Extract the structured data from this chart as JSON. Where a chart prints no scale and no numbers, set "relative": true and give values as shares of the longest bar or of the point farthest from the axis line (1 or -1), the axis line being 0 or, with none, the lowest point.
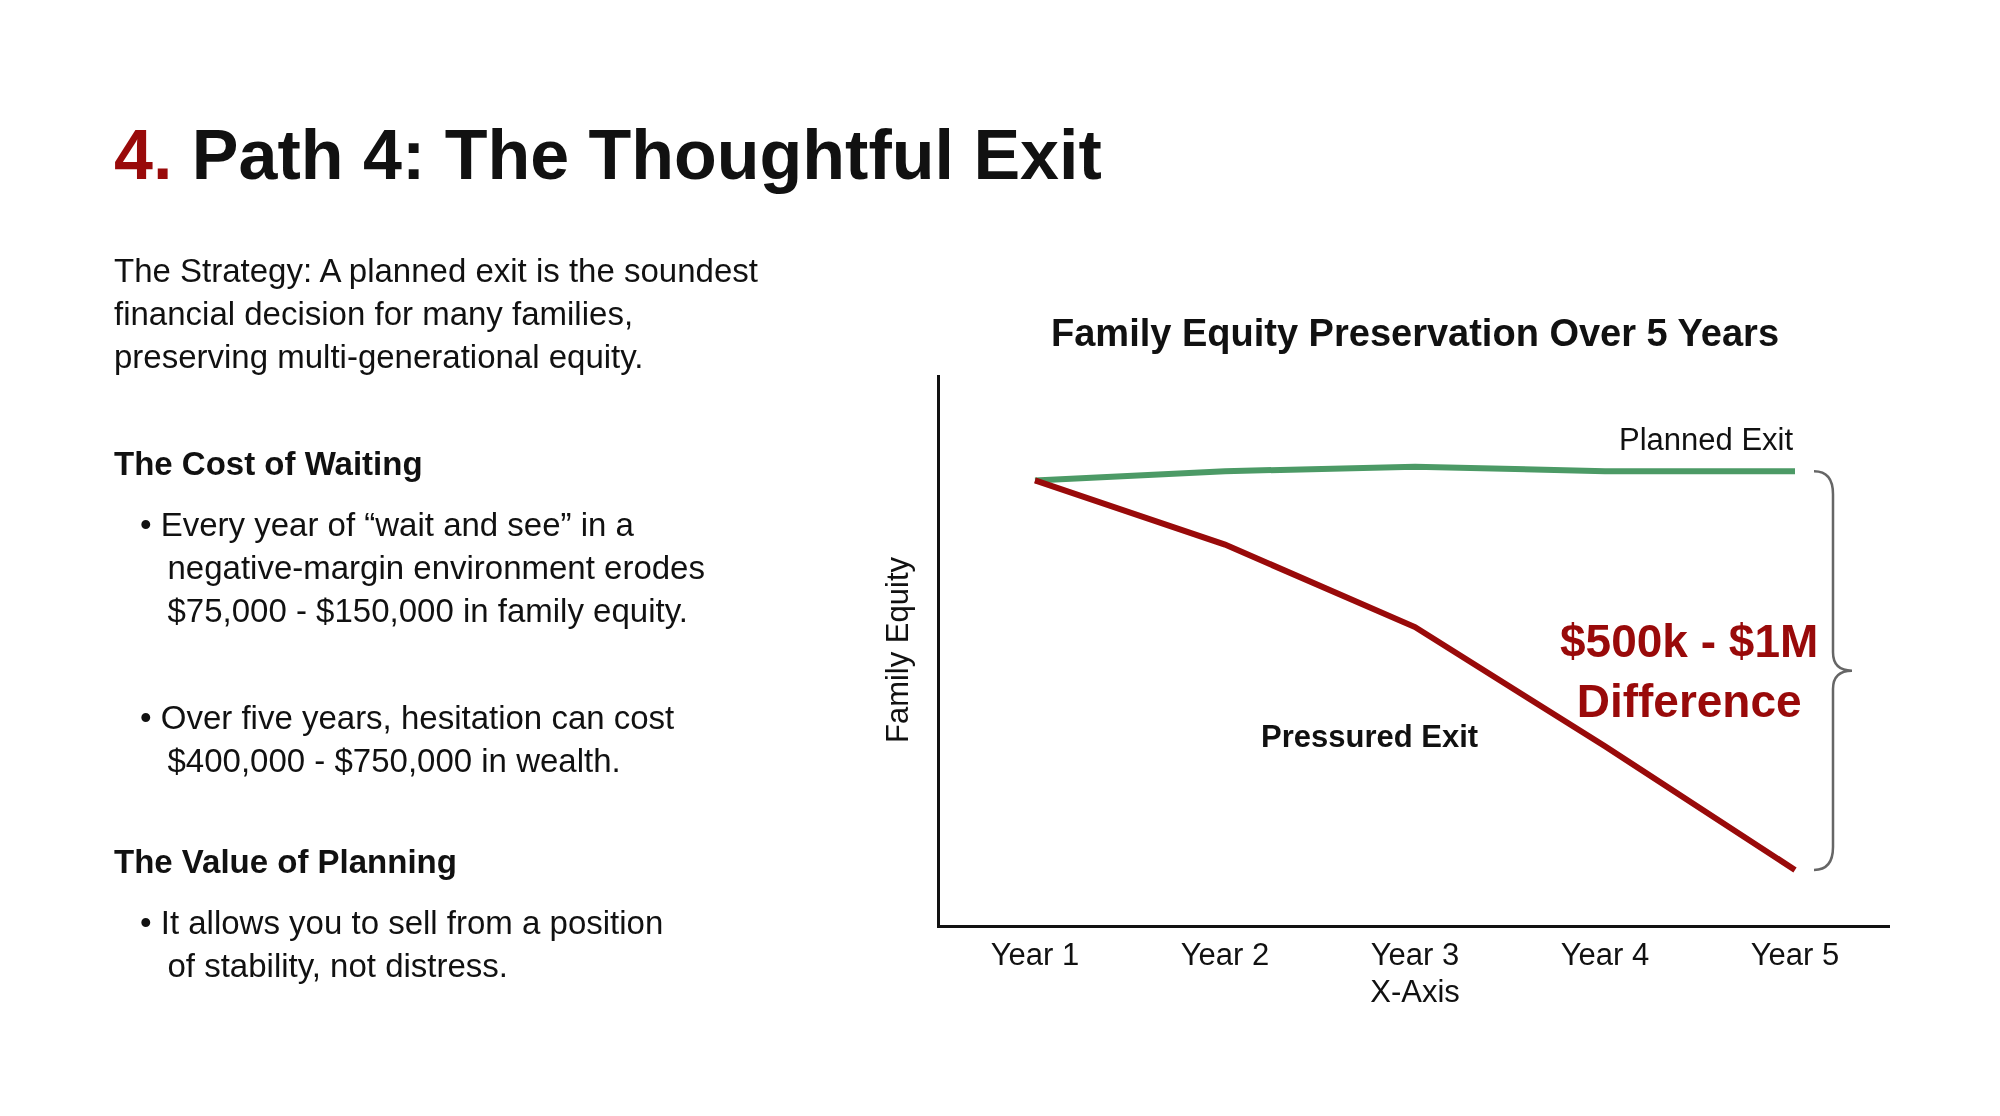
{
  "chart_data": {
    "type": "line",
    "title": "4. Path 4: The Thoughtful Exit",
    "subtitle": "Family Equity Preservation Over 5 Years",
    "xlabel": "X-Axis",
    "ylabel": "Family Equity",
    "relative": true,
    "legend": false,
    "marker": "none",
    "line_style": "solid",
    "categories": [
      "Year 1",
      "Year 2",
      "Year 3",
      "Year 4",
      "Year 5"
    ],
    "series": [
      {
        "name": "Planned Exit",
        "color": "#4c9a66",
        "values": [
          0.97,
          0.99,
          1,
          0.99,
          0.99
        ]
      },
      {
        "name": "Pressured Exit",
        "color": "#990a0a",
        "values": [
          0.97,
          0.83,
          0.65,
          0.39,
          0.12
        ]
      }
    ],
    "annotations": [
      "The Strategy: A planned exit is the soundest financial decision for many families, preserving multi-generational equity.",
      "The Cost of Waiting",
      "• Every year of “wait and see” in a negative-margin environment erodes $75,000 - $150,000 in family equity.",
      "• Over five years, hesitation can cost $400,000 - $750,000 in wealth.",
      "The Value of Planning",
      "• It allows you to sell from a position of stability, not distress.",
      "$500k - $1M Difference"
    ]
  }
}
